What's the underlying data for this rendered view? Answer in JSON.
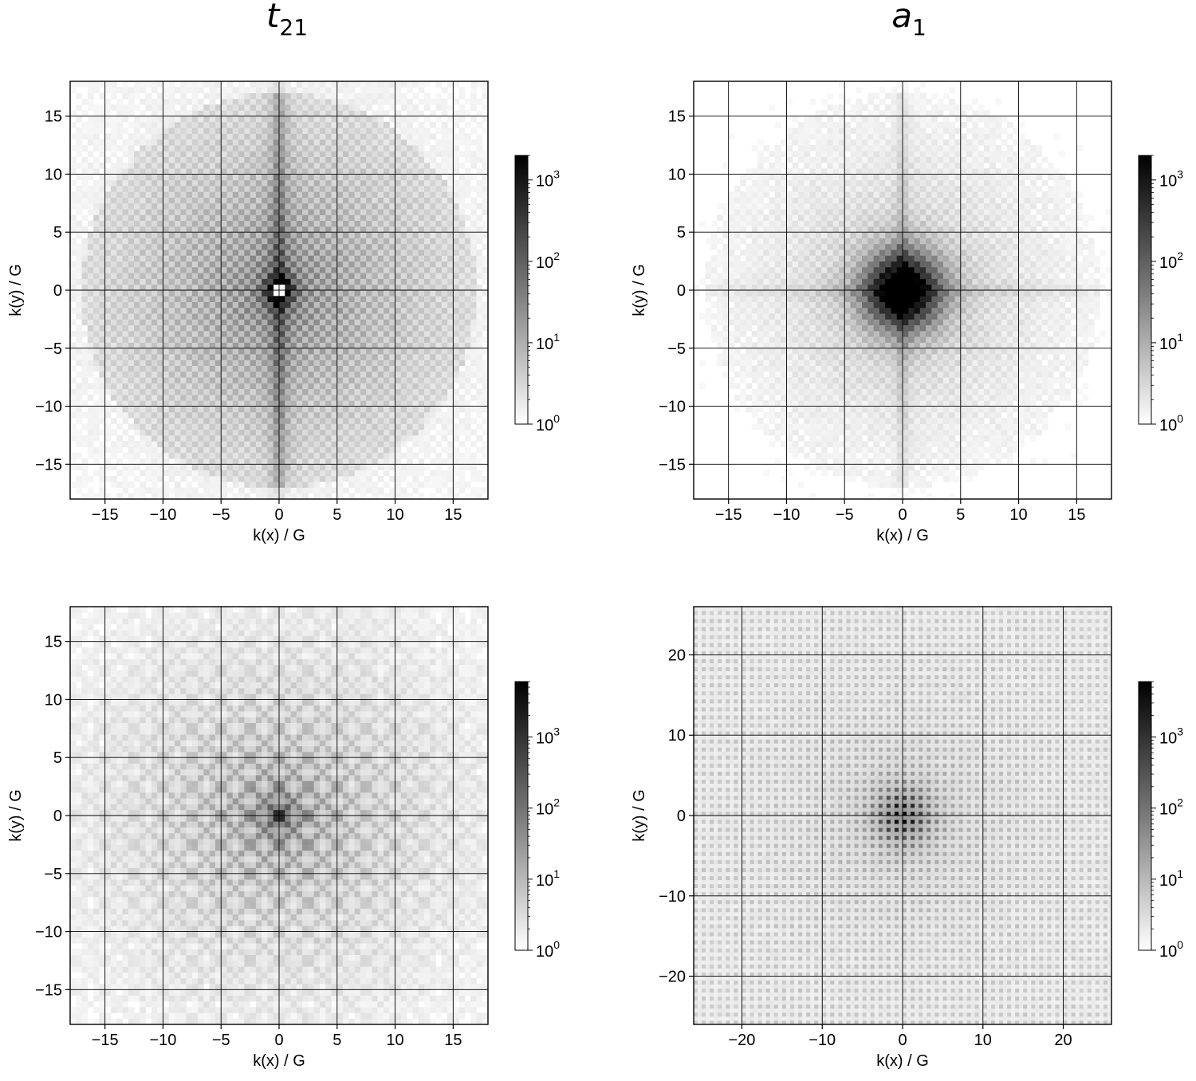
{
  "column_titles": [
    {
      "base": "t",
      "sub": "21"
    },
    {
      "base": "a",
      "sub": "1"
    }
  ],
  "colors": {
    "high": "#000000",
    "low": "#ffffff",
    "grid": "#000000"
  },
  "chart_data": [
    {
      "type": "heatmap",
      "panel": "top-left",
      "pattern": "checkerboard-cross",
      "xlabel": "k(x) / G",
      "ylabel": "k(y) / G",
      "xlim": [
        -18,
        18
      ],
      "ylim": [
        -18,
        18
      ],
      "xticks": [
        -15,
        -10,
        -5,
        0,
        5,
        10,
        15
      ],
      "yticks": [
        -15,
        -10,
        -5,
        0,
        5,
        10,
        15
      ],
      "xtick_labels": [
        "−15",
        "−10",
        "−5",
        "0",
        "5",
        "10",
        "15"
      ],
      "ytick_labels": [
        "−15",
        "−10",
        "−5",
        "0",
        "5",
        "10",
        "15"
      ],
      "grid": true,
      "color_scale": "log",
      "colorbar": {
        "min": 1,
        "max": 2000,
        "tick_values": [
          1,
          10,
          100,
          1000
        ],
        "tick_exponents": [
          "0",
          "1",
          "2",
          "3"
        ],
        "base": "10"
      }
    },
    {
      "type": "heatmap",
      "panel": "top-right",
      "pattern": "checkerboard-blob",
      "xlabel": "k(x) / G",
      "ylabel": "k(y) / G",
      "xlim": [
        -18,
        18
      ],
      "ylim": [
        -18,
        18
      ],
      "xticks": [
        -15,
        -10,
        -5,
        0,
        5,
        10,
        15
      ],
      "yticks": [
        -15,
        -10,
        -5,
        0,
        5,
        10,
        15
      ],
      "xtick_labels": [
        "−15",
        "−10",
        "−5",
        "0",
        "5",
        "10",
        "15"
      ],
      "ytick_labels": [
        "−15",
        "−10",
        "−5",
        "0",
        "5",
        "10",
        "15"
      ],
      "grid": true,
      "color_scale": "log",
      "colorbar": {
        "min": 1,
        "max": 2000,
        "tick_values": [
          1,
          10,
          100,
          1000
        ],
        "tick_exponents": [
          "0",
          "1",
          "2",
          "3"
        ],
        "base": "10"
      }
    },
    {
      "type": "heatmap",
      "panel": "bottom-left",
      "pattern": "diagonal-lattice",
      "xlabel": "k(x) / G",
      "ylabel": "k(y) / G",
      "xlim": [
        -18,
        18
      ],
      "ylim": [
        -18,
        18
      ],
      "xticks": [
        -15,
        -10,
        -5,
        0,
        5,
        10,
        15
      ],
      "yticks": [
        -15,
        -10,
        -5,
        0,
        5,
        10,
        15
      ],
      "xtick_labels": [
        "−15",
        "−10",
        "−5",
        "0",
        "5",
        "10",
        "15"
      ],
      "ytick_labels": [
        "−15",
        "−10",
        "−5",
        "0",
        "5",
        "10",
        "15"
      ],
      "grid": true,
      "color_scale": "log",
      "colorbar": {
        "min": 1,
        "max": 6000,
        "tick_values": [
          1,
          10,
          100,
          1000
        ],
        "tick_exponents": [
          "0",
          "1",
          "2",
          "3"
        ],
        "base": "10"
      }
    },
    {
      "type": "heatmap",
      "panel": "bottom-right",
      "pattern": "dot-lattice",
      "xlabel": "k(x) / G",
      "ylabel": "k(y) / G",
      "xlim": [
        -26,
        26
      ],
      "ylim": [
        -26,
        26
      ],
      "xticks": [
        -20,
        -10,
        0,
        10,
        20
      ],
      "yticks": [
        -20,
        -10,
        0,
        10,
        20
      ],
      "xtick_labels": [
        "−20",
        "−10",
        "0",
        "10",
        "20"
      ],
      "ytick_labels": [
        "−20",
        "−10",
        "0",
        "10",
        "20"
      ],
      "grid": true,
      "color_scale": "log",
      "colorbar": {
        "min": 1,
        "max": 6000,
        "tick_values": [
          1,
          10,
          100,
          1000
        ],
        "tick_exponents": [
          "0",
          "1",
          "2",
          "3"
        ],
        "base": "10"
      }
    }
  ]
}
